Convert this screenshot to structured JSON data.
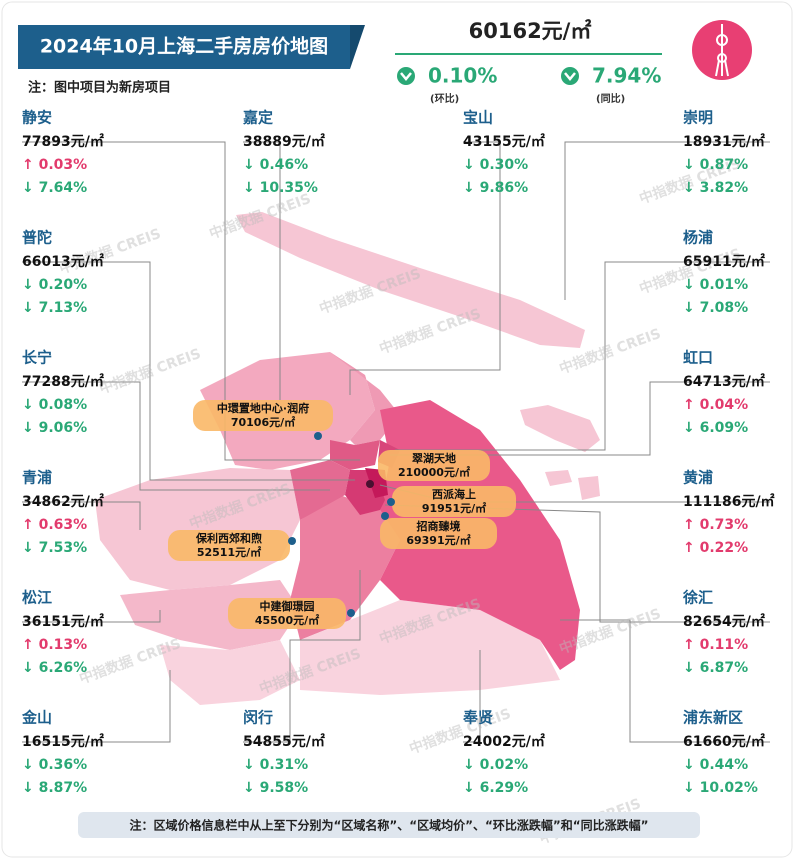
{
  "header": {
    "title": "2024年10月上海二手房房价地图",
    "note": "注：图中项目为新房项目"
  },
  "overall": {
    "price": "60162元/㎡",
    "mom": "0.10%",
    "mom_label": "(环比)",
    "yoy": "7.94%",
    "yoy_label": "(同比)"
  },
  "districts": [
    {
      "name": "静安",
      "price": "77893元/㎡",
      "mom": "↑ 0.03%",
      "yoy": "↓ 7.64%"
    },
    {
      "name": "普陀",
      "price": "66013元/㎡",
      "mom": "↓ 0.20%",
      "yoy": "↓ 7.13%"
    },
    {
      "name": "长宁",
      "price": "77288元/㎡",
      "mom": "↓ 0.08%",
      "yoy": "↓ 9.06%"
    },
    {
      "name": "青浦",
      "price": "34862元/㎡",
      "mom": "↑ 0.63%",
      "yoy": "↓ 7.53%"
    },
    {
      "name": "松江",
      "price": "36151元/㎡",
      "mom": "↑ 0.13%",
      "yoy": "↓ 6.26%"
    },
    {
      "name": "金山",
      "price": "16515元/㎡",
      "mom": "↓ 0.36%",
      "yoy": "↓ 8.87%"
    },
    {
      "name": "嘉定",
      "price": "38889元/㎡",
      "mom": "↓ 0.46%",
      "yoy": "↓ 10.35%"
    },
    {
      "name": "闵行",
      "price": "54855元/㎡",
      "mom": "↓ 0.31%",
      "yoy": "↓ 9.58%"
    },
    {
      "name": "宝山",
      "price": "43155元/㎡",
      "mom": "↓ 0.30%",
      "yoy": "↓ 9.86%"
    },
    {
      "name": "奉贤",
      "price": "24002元/㎡",
      "mom": "↓ 0.02%",
      "yoy": "↓ 6.29%"
    },
    {
      "name": "崇明",
      "price": "18931元/㎡",
      "mom": "↓ 0.87%",
      "yoy": "↓ 3.82%"
    },
    {
      "name": "杨浦",
      "price": "65911元/㎡",
      "mom": "↓ 0.01%",
      "yoy": "↓ 7.08%"
    },
    {
      "name": "虹口",
      "price": "64713元/㎡",
      "mom": "↑ 0.04%",
      "yoy": "↓ 6.09%"
    },
    {
      "name": "黄浦",
      "price": "111186元/㎡",
      "mom": "↑ 0.73%",
      "yoy": "↑ 0.22%"
    },
    {
      "name": "徐汇",
      "price": "82654元/㎡",
      "mom": "↑ 0.11%",
      "yoy": "↓ 6.87%"
    },
    {
      "name": "浦东新区",
      "price": "61660元/㎡",
      "mom": "↓ 0.44%",
      "yoy": "↓ 10.02%"
    }
  ],
  "projects": [
    {
      "name": "中環置地中心·润府",
      "price": "70106元/㎡"
    },
    {
      "name": "翠湖天地",
      "price": "210000元/㎡"
    },
    {
      "name": "西派海上",
      "price": "91951元/㎡"
    },
    {
      "name": "招商臻境",
      "price": "69391元/㎡"
    },
    {
      "name": "保利西郊和煦",
      "price": "52511元/㎡"
    },
    {
      "name": "中建御璟园",
      "price": "45500元/㎡"
    }
  ],
  "watermark": "中指数据 CREIS",
  "footnote": "注：区域价格信息栏中从上至下分别为“区域名称”、“区域均价”、“环比涨跌幅”和“同比涨跌幅”"
}
